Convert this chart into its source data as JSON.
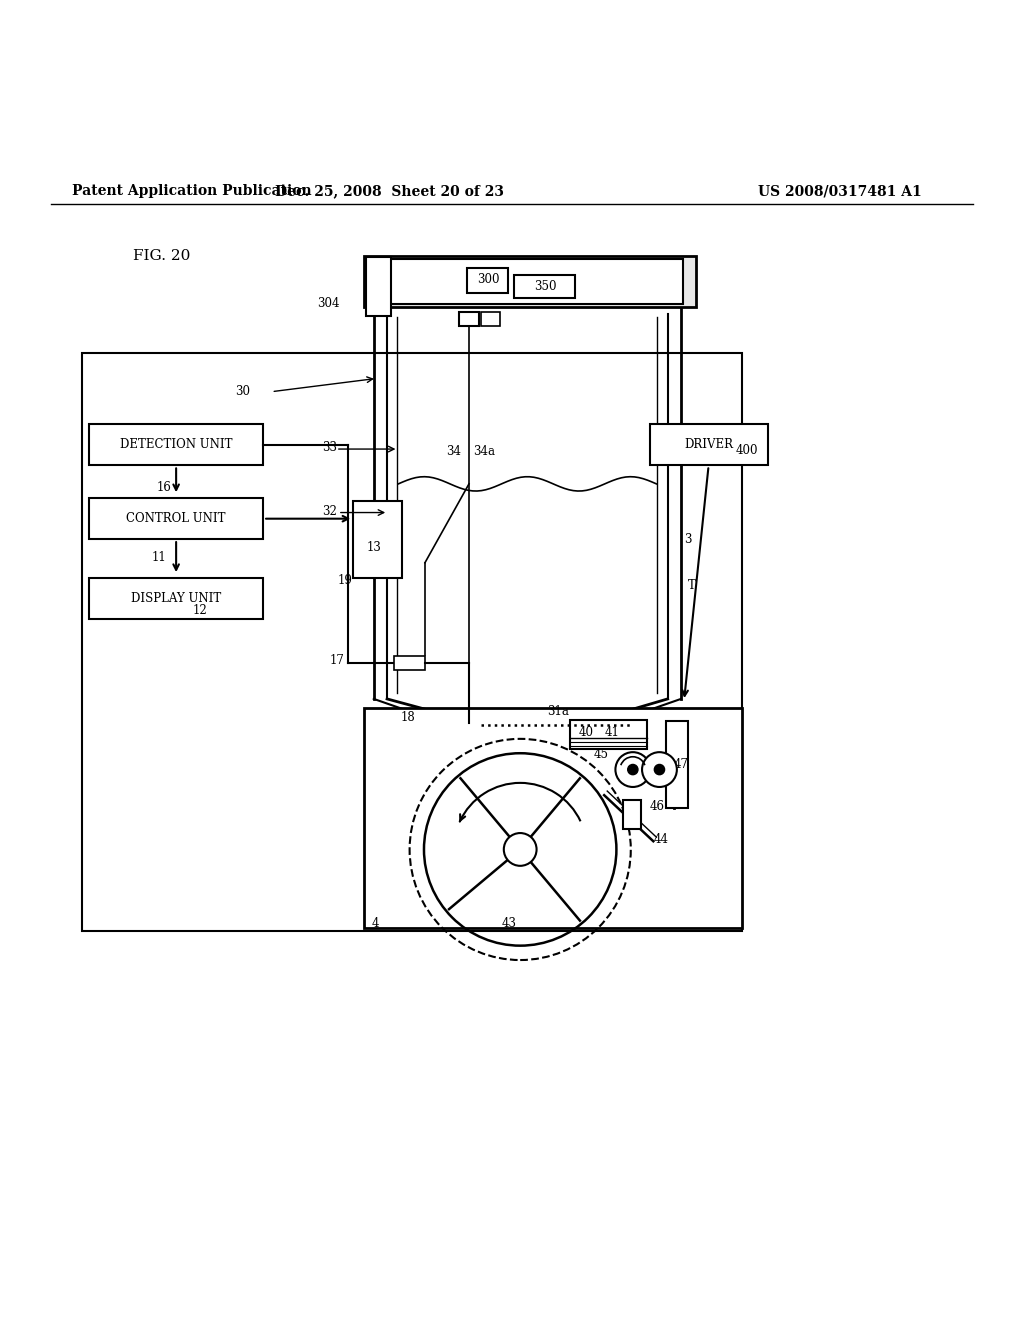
{
  "bg_color": "#ffffff",
  "header_left": "Patent Application Publication",
  "header_mid": "Dec. 25, 2008  Sheet 20 of 23",
  "header_right": "US 2008/0317481 A1",
  "fig_label": "FIG. 20"
}
